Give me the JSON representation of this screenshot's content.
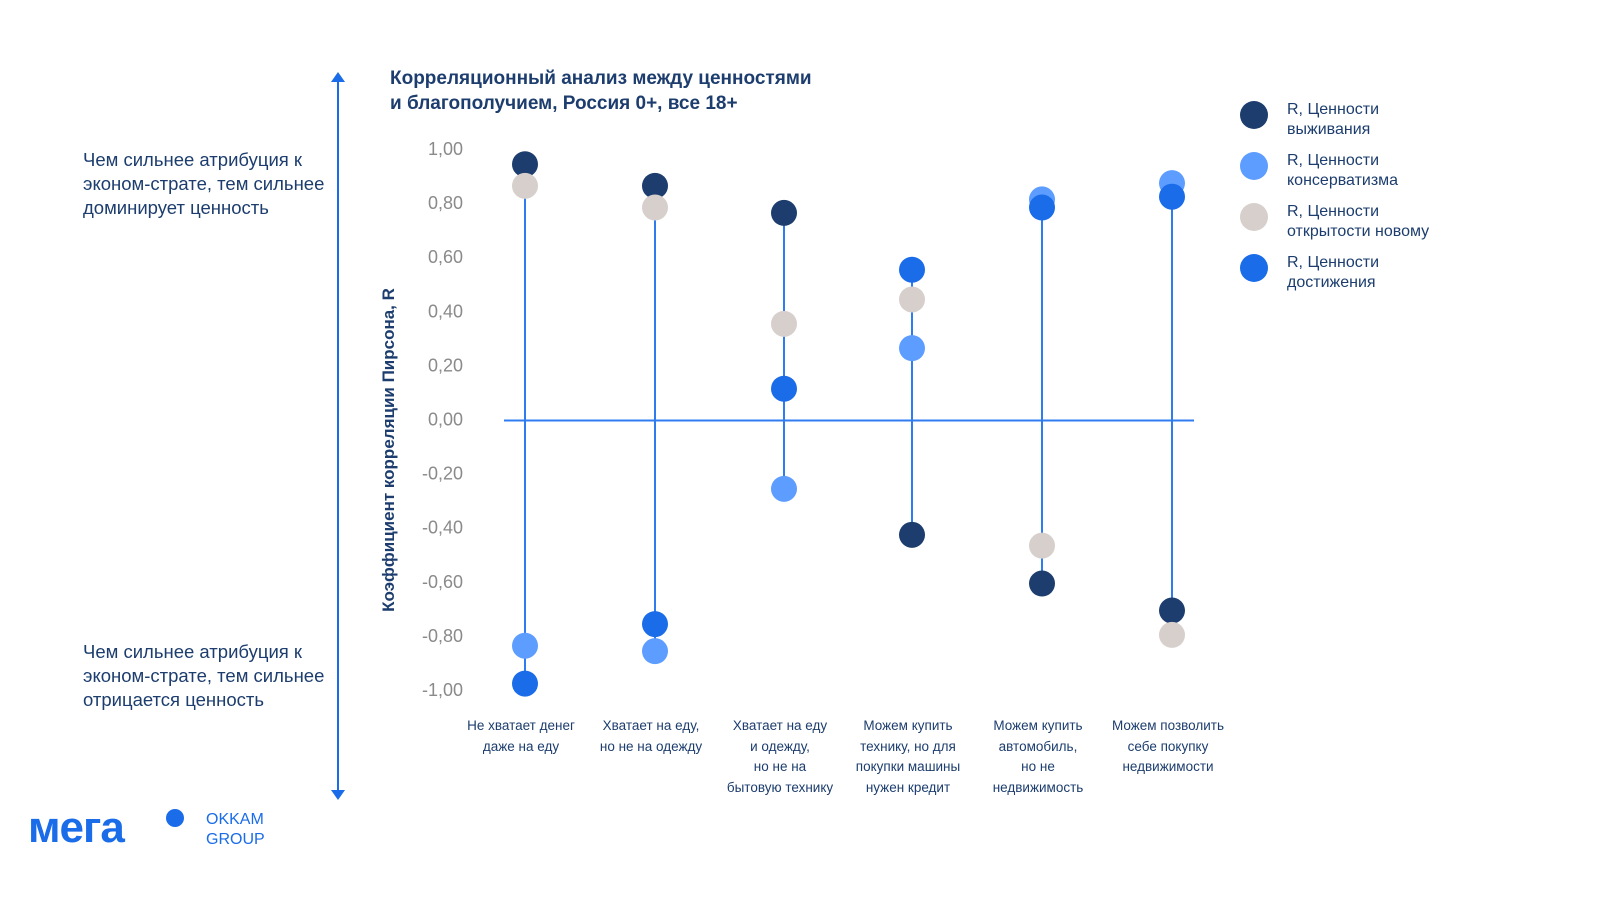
{
  "chart_data": {
    "type": "scatter",
    "subtype": "dot-plot-with-range-lines",
    "title": "Корреляционный анализ между ценностями и благополучием, Россия 0+, все 18+",
    "title_lines": [
      "Корреляционный анализ между ценностями",
      "и благополучием, Россия 0+, все 18+"
    ],
    "ylabel": "Коэффициент корреляции Пирсона, R",
    "xlabel": "",
    "ylim": [
      -1.0,
      1.0
    ],
    "yticks": [
      "1,00",
      "0,80",
      "0,60",
      "0,40",
      "0,20",
      "0,00",
      "-0,20",
      "-0,40",
      "-0,60",
      "-0,80",
      "-1,00"
    ],
    "ytick_values": [
      1.0,
      0.8,
      0.6,
      0.4,
      0.2,
      0.0,
      -0.2,
      -0.4,
      -0.6,
      -0.8,
      -1.0
    ],
    "grid": false,
    "legend_position": "right",
    "categories": [
      [
        "Не хватает денег",
        "даже на еду"
      ],
      [
        "Хватает на еду,",
        "но не на одежду"
      ],
      [
        "Хватает на еду",
        "и одежду,",
        "но не на",
        "бытовую технику"
      ],
      [
        "Можем купить",
        "технику, но для",
        "покупки машины",
        "нужен кредит"
      ],
      [
        "Можем купить",
        "автомобиль,",
        "но не",
        "недвижимость"
      ],
      [
        "Можем позволить",
        "себе покупку",
        "недвижимости"
      ]
    ],
    "series": [
      {
        "name": "R, Ценности выживания",
        "name_lines": [
          "R, Ценности",
          "выживания"
        ],
        "color": "#1c3d6e",
        "values": [
          0.94,
          0.86,
          0.76,
          -0.43,
          -0.61,
          -0.71
        ]
      },
      {
        "name": "R, Ценности консерватизма",
        "name_lines": [
          "R, Ценности",
          "консерватизма"
        ],
        "color": "#5c9dff",
        "values": [
          -0.84,
          -0.86,
          -0.26,
          0.26,
          0.81,
          0.87
        ]
      },
      {
        "name": "R, Ценности открытости новому",
        "name_lines": [
          "R, Ценности",
          "открытости новому"
        ],
        "color": "#d6cfcc",
        "values": [
          0.86,
          0.78,
          0.35,
          0.44,
          -0.47,
          -0.8
        ]
      },
      {
        "name": "R, Ценности достижения",
        "name_lines": [
          "R, Ценности",
          "достижения"
        ],
        "color": "#1a6ce8",
        "values": [
          -0.98,
          -0.76,
          0.11,
          0.55,
          0.78,
          0.82
        ]
      }
    ],
    "line_color": "#2f7cf0"
  },
  "side_notes": {
    "top": "Чем сильнее атрибуция к эконом-страте, тем сильнее доминирует ценность",
    "bottom": "Чем сильнее атрибуция к эконом-страте, тем сильнее отрицается ценность"
  },
  "logo": {
    "brand": "мега",
    "group_line1": "OKKAM",
    "group_line2": "GROUP",
    "color": "#1a6ce8"
  }
}
